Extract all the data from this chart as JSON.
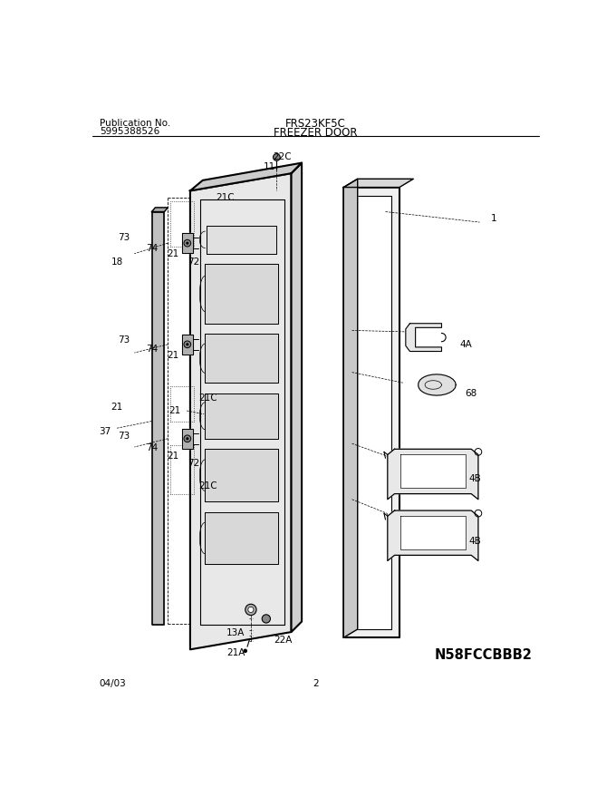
{
  "title_center": "FRS23KF5C",
  "title_sub": "FREEZER DOOR",
  "pub_label": "Publication No.",
  "pub_number": "5995388526",
  "date_label": "04/03",
  "page_number": "2",
  "model_code": "N58FCCBBB2",
  "bg_color": "#ffffff",
  "line_color": "#000000",
  "gray_fill": "#d8d8d8",
  "light_gray": "#eeeeee"
}
